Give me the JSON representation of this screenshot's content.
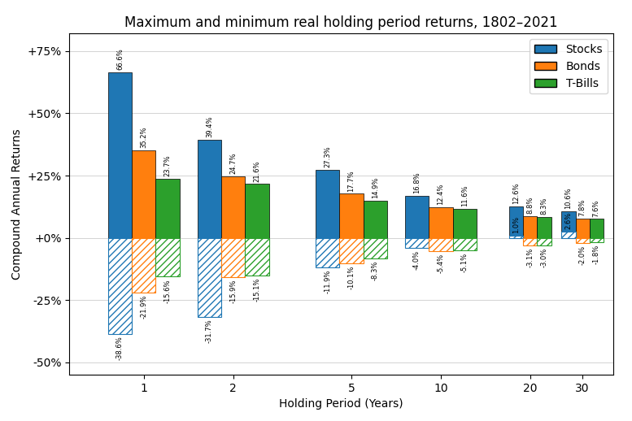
{
  "chart_data": {
    "type": "bar",
    "title": "Maximum and minimum real holding period returns, 1802–2021",
    "x_label": "Holding Period (Years)",
    "y_label": "Compound Annual Returns",
    "x": [
      1,
      2,
      5,
      10,
      20,
      30
    ],
    "log": "x",
    "xlim": [
      0.5623413251903491,
      38.018939632056124
    ],
    "xticks": [
      1,
      2,
      5,
      10,
      20,
      30
    ],
    "ylim": [
      -55,
      82
    ],
    "yticks": [
      {
        "value": -50,
        "label": "-50%"
      },
      {
        "value": -25,
        "label": "-25%"
      },
      {
        "value": 0,
        "label": "+0%"
      },
      {
        "value": 25,
        "label": "+25%"
      },
      {
        "value": 50,
        "label": "+50%"
      },
      {
        "value": 75,
        "label": "+75%"
      }
    ],
    "grid": true,
    "legend": "upper right",
    "data_labels": true,
    "series": [
      {
        "name": "Stocks",
        "color": "#1f77b4",
        "values": [
          66.6,
          39.4,
          27.3,
          16.8,
          12.6,
          10.6
        ],
        "value_labels": [
          "66.6%",
          "39.4%",
          "27.3%",
          "16.8%",
          "12.6%",
          "10.6%"
        ],
        "min_values": [
          -38.6,
          -31.7,
          -11.9,
          -4.0,
          1.0,
          2.6
        ],
        "min_value_labels": [
          "-38.6%",
          "-31.7%",
          "-11.9%",
          "-4.0%",
          "1.0%",
          "2.6%"
        ]
      },
      {
        "name": "Bonds",
        "color": "#ff7f0e",
        "values": [
          35.2,
          24.7,
          17.7,
          12.4,
          8.8,
          7.8
        ],
        "value_labels": [
          "35.2%",
          "24.7%",
          "17.7%",
          "12.4%",
          "8.8%",
          "7.8%"
        ],
        "min_values": [
          -21.9,
          -15.9,
          -10.1,
          -5.4,
          -3.1,
          -2.0
        ],
        "min_value_labels": [
          "-21.9%",
          "-15.9%",
          "-10.1%",
          "-5.4%",
          "-3.1%",
          "-2.0%"
        ]
      },
      {
        "name": "T-Bills",
        "color": "#2ca02c",
        "values": [
          23.7,
          21.6,
          14.9,
          11.6,
          8.3,
          7.6
        ],
        "value_labels": [
          "23.7%",
          "21.6%",
          "14.9%",
          "11.6%",
          "8.3%",
          "7.6%"
        ],
        "min_values": [
          -15.6,
          -15.1,
          -8.3,
          -5.1,
          -3.0,
          -1.8
        ],
        "min_value_labels": [
          "-15.6%",
          "-15.1%",
          "-8.3%",
          "-5.1%",
          "-3.0%",
          "-1.8%"
        ]
      }
    ]
  }
}
